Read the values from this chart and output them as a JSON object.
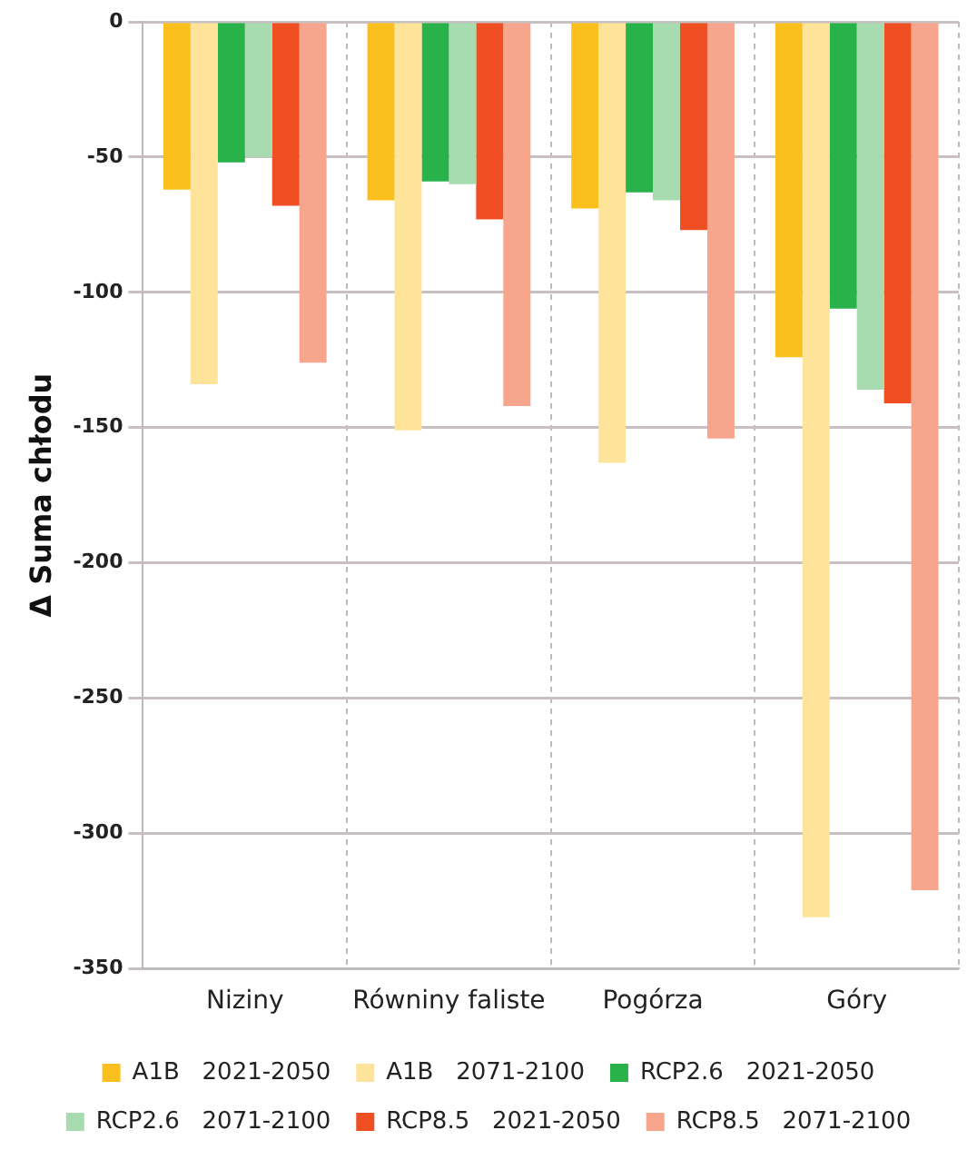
{
  "chart_data": {
    "type": "bar",
    "ylabel": "Δ Suma chłodu",
    "categories": [
      "Niziny",
      "Równiny faliste",
      "Pogórza",
      "Góry"
    ],
    "series": [
      {
        "name": "A1B   2021-2050",
        "color": "#fbbf1e",
        "values": [
          -62,
          -66,
          -69,
          -124
        ]
      },
      {
        "name": "A1B   2071-2100",
        "color": "#fde49a",
        "values": [
          -134,
          -151,
          -163,
          -331
        ]
      },
      {
        "name": "RCP2.6   2021-2050",
        "color": "#29b24a",
        "values": [
          -52,
          -59,
          -63,
          -106
        ]
      },
      {
        "name": "RCP2.6   2071-2100",
        "color": "#a8dcb0",
        "values": [
          -50,
          -60,
          -66,
          -136
        ]
      },
      {
        "name": "RCP8.5   2021-2050",
        "color": "#f04e23",
        "values": [
          -68,
          -73,
          -77,
          -141
        ]
      },
      {
        "name": "RCP8.5   2071-2100",
        "color": "#f7a58c",
        "values": [
          -126,
          -142,
          -154,
          -321
        ]
      }
    ],
    "ylim": [
      -350,
      0
    ],
    "yticks": [
      0,
      -50,
      -100,
      -150,
      -200,
      -250,
      -300,
      -350
    ],
    "grid": true,
    "legend": "bottom"
  }
}
